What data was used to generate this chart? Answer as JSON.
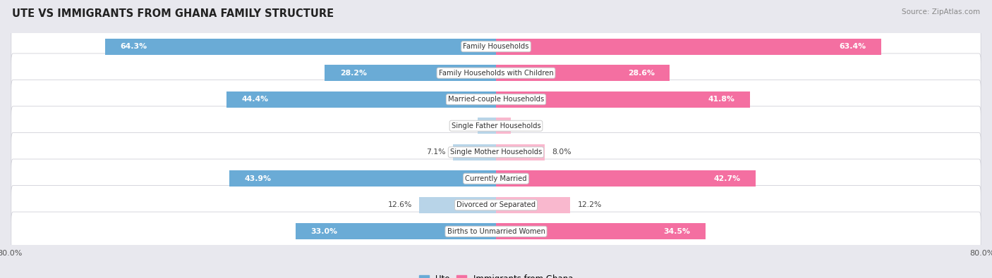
{
  "title": "UTE VS IMMIGRANTS FROM GHANA FAMILY STRUCTURE",
  "source": "Source: ZipAtlas.com",
  "categories": [
    "Family Households",
    "Family Households with Children",
    "Married-couple Households",
    "Single Father Households",
    "Single Mother Households",
    "Currently Married",
    "Divorced or Separated",
    "Births to Unmarried Women"
  ],
  "ute_values": [
    64.3,
    28.2,
    44.4,
    3.0,
    7.1,
    43.9,
    12.6,
    33.0
  ],
  "ghana_values": [
    63.4,
    28.6,
    41.8,
    2.4,
    8.0,
    42.7,
    12.2,
    34.5
  ],
  "ute_color_dark": "#6aabd6",
  "ute_color_light": "#b8d4e8",
  "ghana_color_dark": "#f46fa1",
  "ghana_color_light": "#f9b8ce",
  "axis_max": 80.0,
  "outer_bg": "#e8e8ee",
  "row_bg": "#ffffff",
  "label_threshold": 20,
  "legend_ute_color": "#6aabd6",
  "legend_ghana_color": "#f46fa1"
}
